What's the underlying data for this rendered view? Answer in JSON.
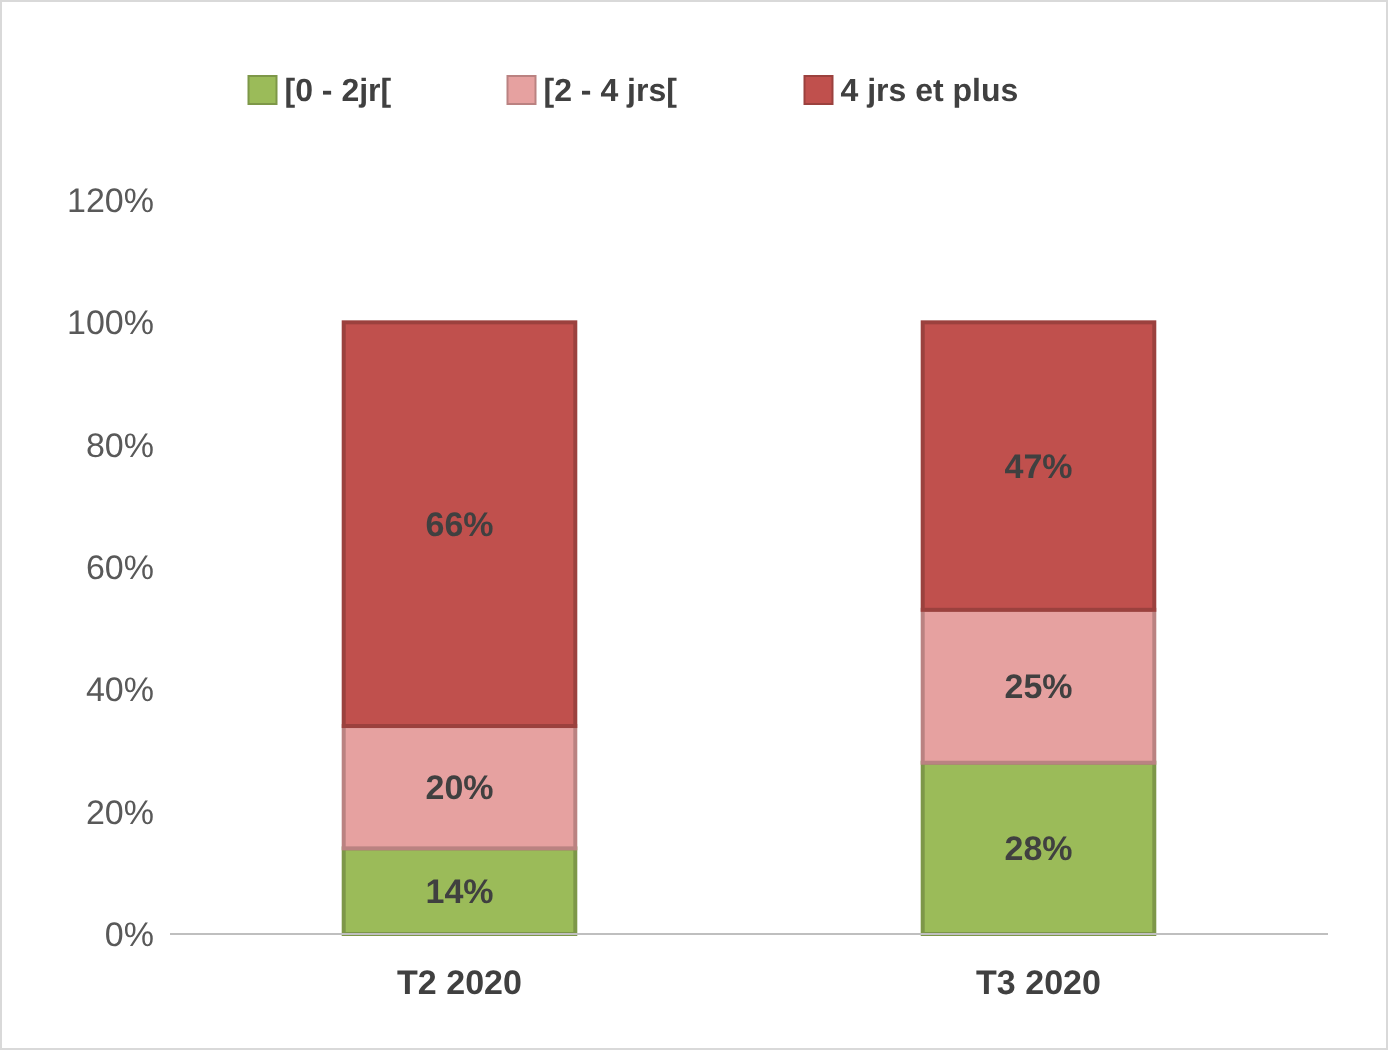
{
  "chart_data": {
    "type": "bar",
    "stacked": true,
    "categories": [
      "T2 2020",
      "T3 2020"
    ],
    "series": [
      {
        "name": "[0 - 2jr[",
        "color": "#9bbb59",
        "values": [
          14,
          28
        ],
        "value_labels": [
          "14%",
          "28%"
        ]
      },
      {
        "name": "[2 - 4 jrs[",
        "color": "#e6a1a0",
        "values": [
          20,
          25
        ],
        "value_labels": [
          "20%",
          "25%"
        ]
      },
      {
        "name": "4 jrs et plus",
        "color": "#c0504d",
        "values": [
          66,
          47
        ],
        "value_labels": [
          "66%",
          "47%"
        ]
      }
    ],
    "ylim": [
      0,
      120
    ],
    "yticks": [
      {
        "value": 0,
        "label": "0%"
      },
      {
        "value": 20,
        "label": "20%"
      },
      {
        "value": 40,
        "label": "40%"
      },
      {
        "value": 60,
        "label": "60%"
      },
      {
        "value": 80,
        "label": "80%"
      },
      {
        "value": 100,
        "label": "100%"
      },
      {
        "value": 120,
        "label": "120%"
      }
    ],
    "grid": false,
    "legend": "top"
  }
}
